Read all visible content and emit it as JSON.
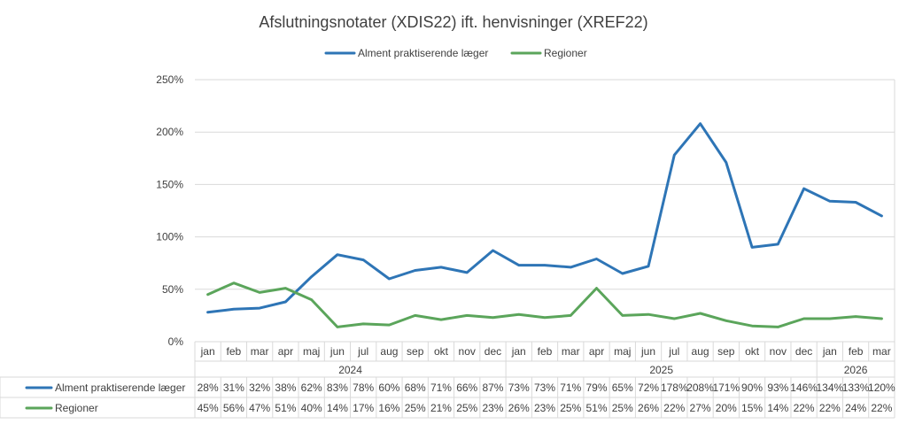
{
  "chart_data": {
    "type": "line",
    "title": "Afslutningsnotater (XDIS22) ift. henvisninger (XREF22)",
    "ylim": [
      0,
      250
    ],
    "y_ticks": [
      "0%",
      "50%",
      "100%",
      "150%",
      "200%",
      "250%"
    ],
    "y_tick_values": [
      0,
      50,
      100,
      150,
      200,
      250
    ],
    "grid": true,
    "legend": "top",
    "categories": [
      "jan",
      "feb",
      "mar",
      "apr",
      "maj",
      "jun",
      "jul",
      "aug",
      "sep",
      "okt",
      "nov",
      "dec",
      "jan",
      "feb",
      "mar",
      "apr",
      "maj",
      "jun",
      "jul",
      "aug",
      "sep",
      "okt",
      "nov",
      "dec",
      "jan",
      "feb",
      "mar"
    ],
    "year_groups": [
      {
        "label": "2024",
        "count": 12
      },
      {
        "label": "2025",
        "count": 12
      },
      {
        "label": "2026",
        "count": 3
      }
    ],
    "series": [
      {
        "name": "Alment praktiserende læger",
        "color": "#2E75B6",
        "values": [
          28,
          31,
          32,
          38,
          62,
          83,
          78,
          60,
          68,
          71,
          66,
          87,
          73,
          73,
          71,
          79,
          65,
          72,
          178,
          208,
          171,
          90,
          93,
          146,
          134,
          133,
          120
        ],
        "labels": [
          "28%",
          "31%",
          "32%",
          "38%",
          "62%",
          "83%",
          "78%",
          "60%",
          "68%",
          "71%",
          "66%",
          "87%",
          "73%",
          "73%",
          "71%",
          "79%",
          "65%",
          "72%",
          "178%",
          "208%",
          "171%",
          "90%",
          "93%",
          "146%",
          "134%",
          "133%",
          "120%"
        ]
      },
      {
        "name": "Regioner",
        "color": "#5BA55B",
        "values": [
          45,
          56,
          47,
          51,
          40,
          14,
          17,
          16,
          25,
          21,
          25,
          23,
          26,
          23,
          25,
          51,
          25,
          26,
          22,
          27,
          20,
          15,
          14,
          22,
          22,
          24,
          22
        ],
        "labels": [
          "45%",
          "56%",
          "47%",
          "51%",
          "40%",
          "14%",
          "17%",
          "16%",
          "25%",
          "21%",
          "25%",
          "23%",
          "26%",
          "23%",
          "25%",
          "51%",
          "25%",
          "26%",
          "22%",
          "27%",
          "20%",
          "15%",
          "14%",
          "22%",
          "22%",
          "24%",
          "22%"
        ]
      }
    ]
  }
}
